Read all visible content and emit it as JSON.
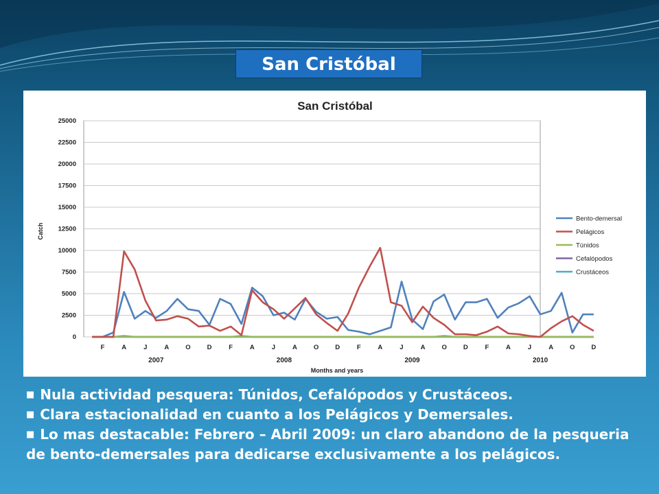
{
  "slide_title": "San Cristóbal",
  "bullets": [
    "Nula actividad pesquera: Túnidos, Cefalópodos y Crustáceos.",
    "Clara estacionalidad en cuanto a los Pelágicos y Demersales.",
    "Lo mas destacable: Febrero – Abril 2009: un claro abandono de la pesqueria de bento-demersales para dedicarse exclusivamente a los pelágicos."
  ],
  "chart_data": {
    "type": "line",
    "title": "San Cristóbal",
    "xlabel": "Months and years",
    "ylabel": "Catch",
    "ylim": [
      0,
      25000
    ],
    "yticks": [
      0,
      2500,
      5000,
      7500,
      10000,
      12500,
      15000,
      17500,
      20000,
      22500,
      25000
    ],
    "grid": true,
    "legend_position": "right",
    "x_month_labels": [
      "F",
      "A",
      "J",
      "A",
      "O",
      "D",
      "F",
      "A",
      "J",
      "A",
      "O",
      "D",
      "F",
      "A",
      "J",
      "A",
      "O",
      "D",
      "F",
      "A",
      "J",
      "A",
      "O",
      "D"
    ],
    "x_year_labels": [
      "2007",
      "2008",
      "2009",
      "2010"
    ],
    "series": [
      {
        "name": "Bento-demersal",
        "color": "#4f81bd",
        "values": [
          0,
          0,
          500,
          5200,
          2100,
          3000,
          2200,
          3000,
          4400,
          3200,
          3000,
          1400,
          4400,
          3800,
          1500,
          5700,
          4700,
          2500,
          2800,
          2000,
          4400,
          2900,
          2100,
          2300,
          800,
          600,
          300,
          700,
          1100,
          6400,
          2000,
          900,
          4100,
          4900,
          2000,
          4000,
          4000,
          4400,
          2200,
          3400,
          3900,
          4700,
          2600,
          3000,
          5100,
          500,
          2600,
          2600
        ]
      },
      {
        "name": "Pelágicos",
        "color": "#c0504d",
        "values": [
          0,
          0,
          0,
          9900,
          7800,
          4200,
          1900,
          2000,
          2400,
          2100,
          1200,
          1300,
          700,
          1200,
          200,
          5400,
          4000,
          3200,
          2100,
          3300,
          4500,
          2600,
          1600,
          700,
          2700,
          5700,
          8100,
          10300,
          4000,
          3600,
          1700,
          3500,
          2200,
          1400,
          300,
          300,
          200,
          600,
          1200,
          400,
          300,
          100,
          0,
          1000,
          1800,
          2400,
          1400,
          700
        ]
      },
      {
        "name": "Túnidos",
        "color": "#9bbb59",
        "values": [
          0,
          0,
          0,
          0,
          0,
          0,
          0,
          0,
          0,
          0,
          0,
          0,
          0,
          0,
          0,
          0,
          0,
          0,
          0,
          0,
          0,
          0,
          0,
          0,
          0,
          0,
          0,
          0,
          0,
          0,
          0,
          0,
          0,
          0,
          0,
          0,
          0,
          0,
          0,
          0,
          0,
          0,
          0,
          0,
          0,
          0,
          0,
          0
        ]
      },
      {
        "name": "Cefalópodos",
        "color": "#8064a2",
        "values": [
          0,
          0,
          0,
          0,
          0,
          0,
          0,
          0,
          0,
          0,
          0,
          0,
          0,
          0,
          0,
          0,
          0,
          0,
          0,
          0,
          0,
          0,
          0,
          0,
          0,
          0,
          0,
          0,
          0,
          0,
          0,
          0,
          0,
          0,
          0,
          0,
          0,
          0,
          0,
          0,
          0,
          0,
          0,
          0,
          0,
          0,
          0,
          0
        ]
      },
      {
        "name": "Crustáceos",
        "color": "#4bacc6",
        "values": [
          0,
          0,
          0,
          100,
          0,
          0,
          0,
          0,
          0,
          0,
          0,
          0,
          0,
          0,
          100,
          0,
          0,
          0,
          0,
          0,
          0,
          0,
          0,
          0,
          0,
          0,
          0,
          0,
          0,
          0,
          0,
          0,
          0,
          100,
          0,
          0,
          0,
          0,
          0,
          0,
          0,
          0,
          0,
          0,
          0,
          0,
          0,
          0
        ]
      }
    ]
  }
}
